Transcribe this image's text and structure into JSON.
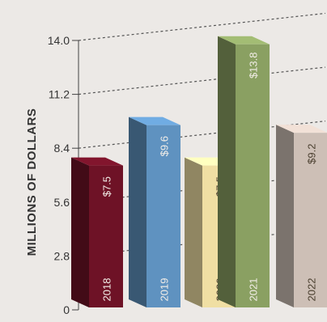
{
  "chart_data": {
    "type": "bar",
    "title": "",
    "xlabel": "",
    "ylabel": "MILLIONS OF DOLLARS",
    "ylim": [
      0,
      14
    ],
    "yticks": [
      "0",
      "2.8",
      "5.6",
      "8.4",
      "11.2",
      "14.0"
    ],
    "ytick_values": [
      0,
      2.8,
      5.6,
      8.4,
      11.2,
      14.0
    ],
    "grid": true,
    "style": "3d-bars",
    "bars": [
      {
        "category": "2018",
        "value": 7.5,
        "value_label": "$7.5",
        "color": "#6e1226"
      },
      {
        "category": "2019",
        "value": 9.6,
        "value_label": "$9.6",
        "color": "#5f92c0"
      },
      {
        "category": "2020",
        "value": 7.5,
        "value_label": "$7.5",
        "color": "#f0dfa3"
      },
      {
        "category": "2021",
        "value": 13.8,
        "value_label": "$13.8",
        "color": "#8aa062"
      },
      {
        "category": "2022",
        "value": 9.2,
        "value_label": "$9.2",
        "color": "#cdbfb6"
      }
    ]
  }
}
